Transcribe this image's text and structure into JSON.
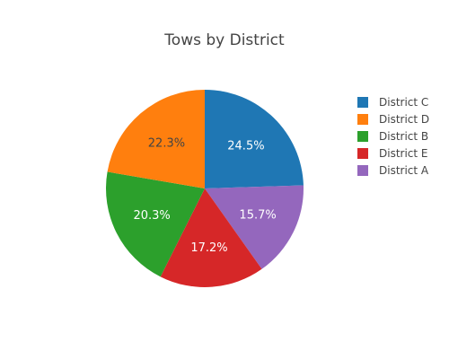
{
  "chart_data": {
    "type": "pie",
    "title": "Tows by District",
    "direction": "clockwise",
    "start_angle_deg": 0,
    "slices": [
      {
        "name": "District C",
        "value": 24.5,
        "label": "24.5%",
        "color": "#1f77b4",
        "label_color": "#ffffff"
      },
      {
        "name": "District A",
        "value": 15.7,
        "label": "15.7%",
        "color": "#9467bd",
        "label_color": "#ffffff"
      },
      {
        "name": "District E",
        "value": 17.2,
        "label": "17.2%",
        "color": "#d62728",
        "label_color": "#ffffff"
      },
      {
        "name": "District B",
        "value": 20.3,
        "label": "20.3%",
        "color": "#2ca02c",
        "label_color": "#ffffff"
      },
      {
        "name": "District D",
        "value": 22.3,
        "label": "22.3%",
        "color": "#ff7f0e",
        "label_color": "#444444"
      }
    ],
    "legend": {
      "placement": "right",
      "items": [
        {
          "name": "District C",
          "color": "#1f77b4"
        },
        {
          "name": "District D",
          "color": "#ff7f0e"
        },
        {
          "name": "District B",
          "color": "#2ca02c"
        },
        {
          "name": "District E",
          "color": "#d62728"
        },
        {
          "name": "District A",
          "color": "#9467bd"
        }
      ]
    }
  }
}
